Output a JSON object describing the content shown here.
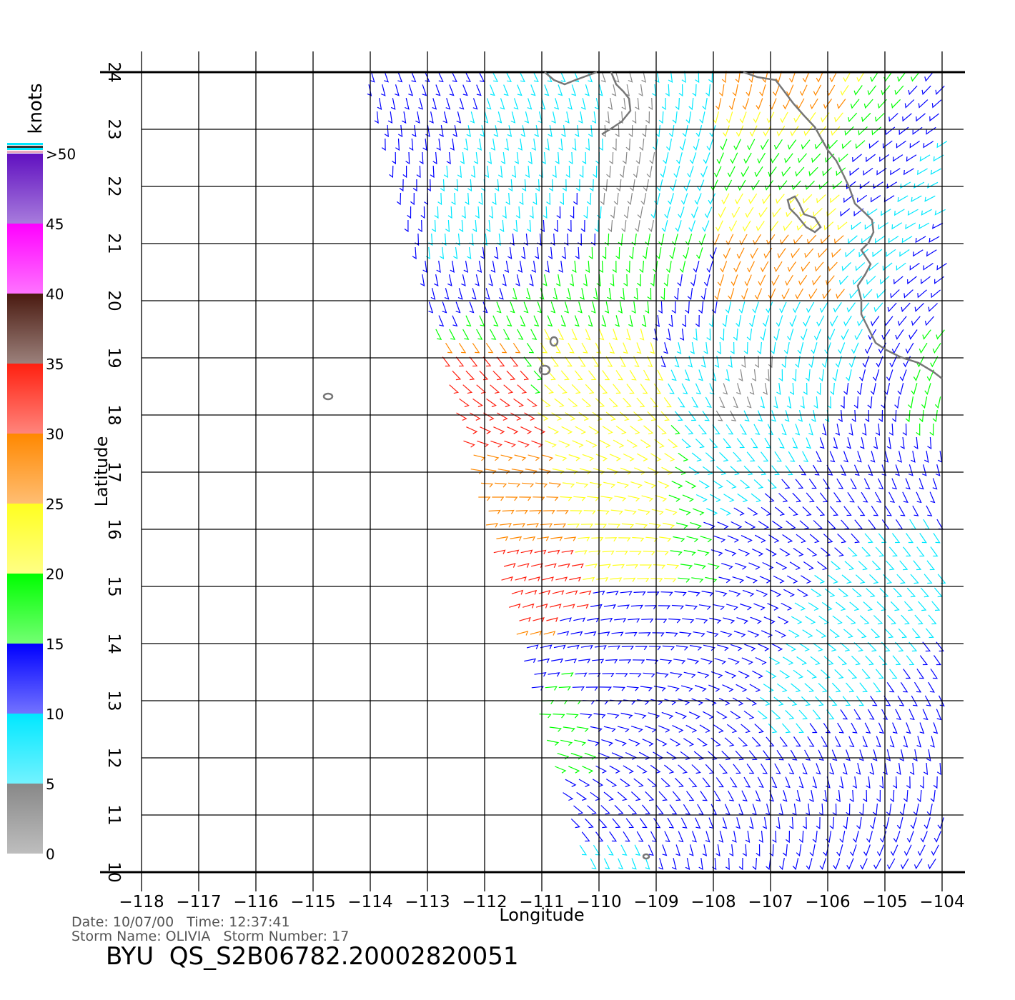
{
  "chart_data": {
    "type": "wind-barb-map",
    "xlabel": "Longitude",
    "ylabel": "Latitude",
    "xlim": [
      -118,
      -104
    ],
    "ylim": [
      10,
      24
    ],
    "xticks": [
      {
        "value": -118,
        "label": "−118"
      },
      {
        "value": -117,
        "label": "−117"
      },
      {
        "value": -116,
        "label": "−116"
      },
      {
        "value": -115,
        "label": "−115"
      },
      {
        "value": -114,
        "label": "−114"
      },
      {
        "value": -113,
        "label": "−113"
      },
      {
        "value": -112,
        "label": "−112"
      },
      {
        "value": -111,
        "label": "−111"
      },
      {
        "value": -110,
        "label": "−110"
      },
      {
        "value": -109,
        "label": "−109"
      },
      {
        "value": -108,
        "label": "−108"
      },
      {
        "value": -107,
        "label": "−107"
      },
      {
        "value": -106,
        "label": "−106"
      },
      {
        "value": -105,
        "label": "−105"
      },
      {
        "value": -104,
        "label": "−104"
      }
    ],
    "yticks": [
      10,
      11,
      12,
      13,
      14,
      15,
      16,
      17,
      18,
      19,
      20,
      21,
      22,
      23,
      24
    ],
    "grid": true,
    "colorbar": {
      "label": "knots",
      "lim": [
        0,
        50
      ],
      "ticks": [
        0,
        5,
        10,
        15,
        20,
        25,
        30,
        35,
        40,
        45,
        {
          "value": 50,
          "label": ">50"
        }
      ],
      "colors": [
        "#888888",
        "#00e8ff",
        "#0000ff",
        "#00ff00",
        "#ffff20",
        "#ff8800",
        "#ff2010",
        "#4a1a10",
        "#ff00ff",
        "#6010c0"
      ]
    },
    "footer": {
      "line1": "Date: 10/07/00   Time: 12:37:41",
      "line2": "Storm Name: OLIVIA   Storm Number: 17",
      "title": "BYU  QS_S2B06782.20002820051"
    }
  }
}
